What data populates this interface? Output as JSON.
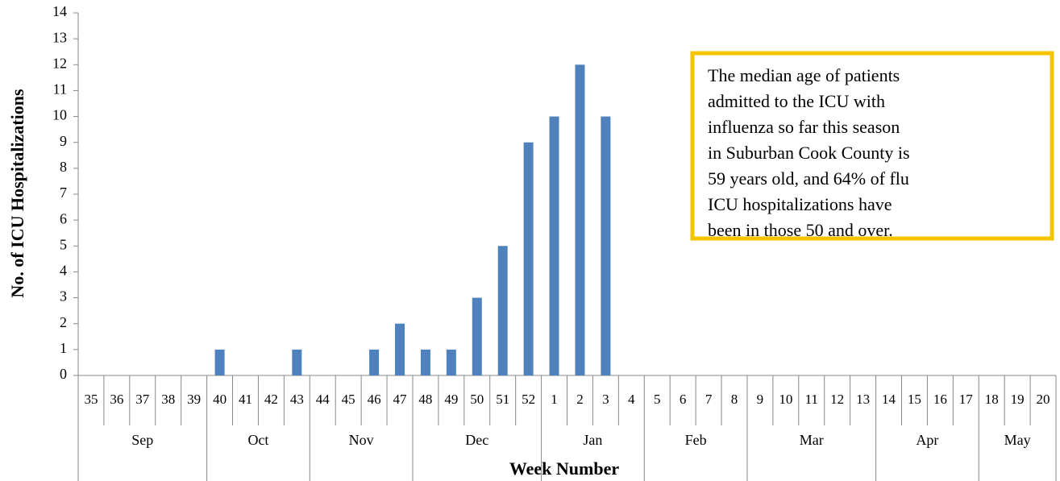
{
  "chart_data": {
    "type": "bar",
    "y_label": "No. of ICU Hospitalizations",
    "x_label": "Week Number",
    "categories": [
      "35",
      "36",
      "37",
      "38",
      "39",
      "40",
      "41",
      "42",
      "43",
      "44",
      "45",
      "46",
      "47",
      "48",
      "49",
      "50",
      "51",
      "52",
      "1",
      "2",
      "3",
      "4",
      "5",
      "6",
      "7",
      "8",
      "9",
      "10",
      "11",
      "12",
      "13",
      "14",
      "15",
      "16",
      "17",
      "18",
      "19",
      "20"
    ],
    "category_groups": [
      "Sep",
      "Sep",
      "Sep",
      "Sep",
      "Sep",
      "Oct",
      "Oct",
      "Oct",
      "Oct",
      "Nov",
      "Nov",
      "Nov",
      "Nov",
      "Dec",
      "Dec",
      "Dec",
      "Dec",
      "Dec",
      "Jan",
      "Jan",
      "Jan",
      "Jan",
      "Feb",
      "Feb",
      "Feb",
      "Feb",
      "Mar",
      "Mar",
      "Mar",
      "Mar",
      "Mar",
      "Apr",
      "Apr",
      "Apr",
      "Apr",
      "May",
      "May",
      "May"
    ],
    "values": [
      0,
      0,
      0,
      0,
      0,
      1,
      0,
      0,
      1,
      0,
      0,
      1,
      2,
      1,
      1,
      3,
      5,
      9,
      10,
      12,
      10,
      null,
      null,
      null,
      null,
      null,
      null,
      null,
      null,
      null,
      null,
      null,
      null,
      null,
      null,
      null,
      null,
      null
    ],
    "color": "#4f81bd",
    "ylim": [
      0,
      14
    ],
    "yticks": [
      0,
      1,
      2,
      3,
      4,
      5,
      6,
      7,
      8,
      9,
      10,
      11,
      12,
      13,
      14
    ],
    "annotation_lines": [
      "The median age of patients",
      "admitted to the ICU with",
      "influenza so far this season",
      "in Suburban Cook County is",
      "59 years old, and 64% of flu",
      "ICU hospitalizations have",
      "been in those 50 and over."
    ],
    "annotation_border_color": "#f5c400"
  }
}
